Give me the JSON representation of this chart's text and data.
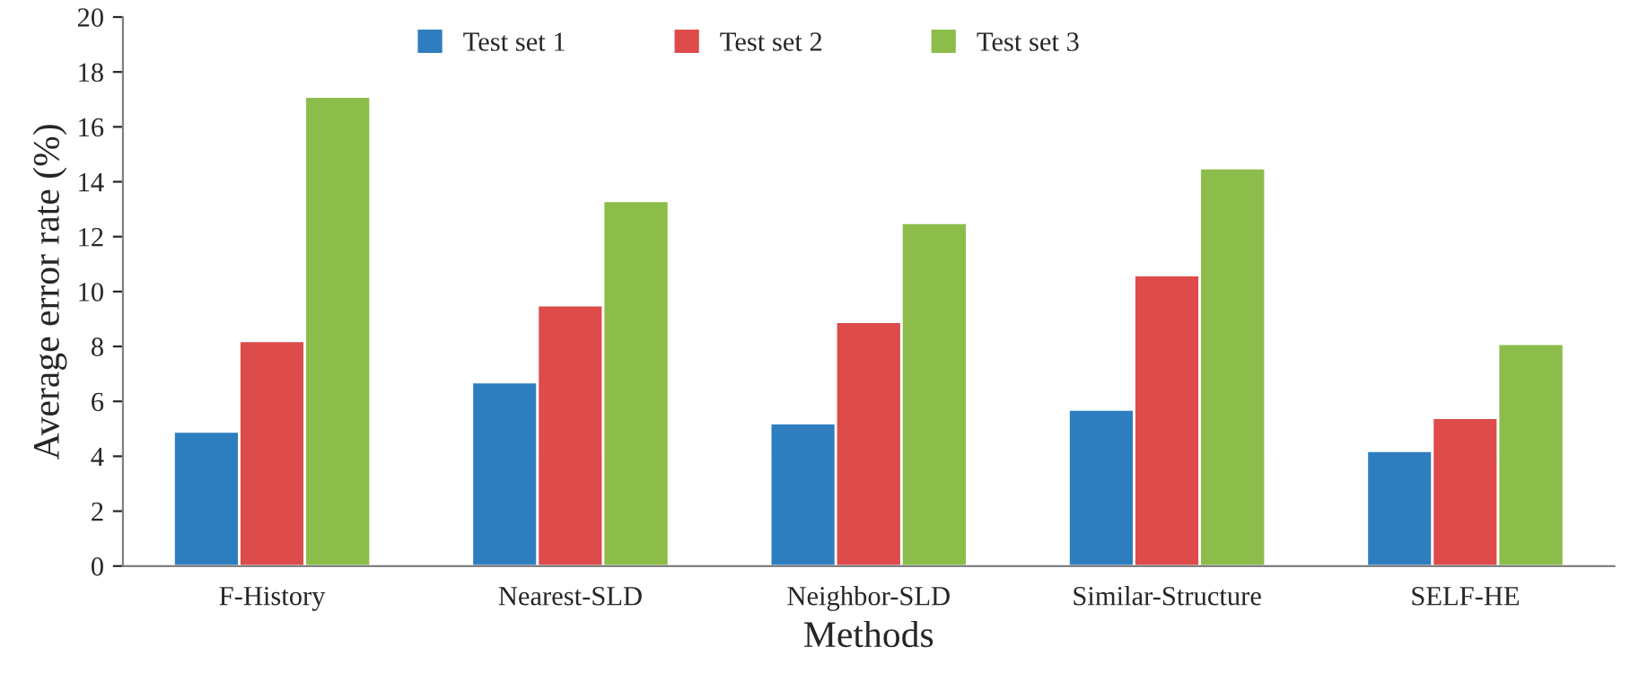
{
  "chart_data": {
    "type": "bar",
    "xlabel": "Methods",
    "ylabel": "Average error rate (%)",
    "categories": [
      "F-History",
      "Nearest-SLD",
      "Neighbor-SLD",
      "Similar-Structure",
      "SELF-HE"
    ],
    "series": [
      {
        "name": "Test set 1",
        "color": "#2e7ebf",
        "values": [
          4.9,
          6.7,
          5.2,
          5.7,
          4.2
        ]
      },
      {
        "name": "Test set 2",
        "color": "#dd4b4b",
        "values": [
          8.2,
          9.5,
          8.9,
          10.6,
          5.4
        ]
      },
      {
        "name": "Test set 3",
        "color": "#8cbd4b",
        "values": [
          17.1,
          13.3,
          12.5,
          14.5,
          8.1
        ]
      }
    ],
    "ylim": [
      0,
      20
    ],
    "yticks": [
      0,
      2,
      4,
      6,
      8,
      10,
      12,
      14,
      16,
      18,
      20
    ],
    "grid": false,
    "legend": "top"
  }
}
